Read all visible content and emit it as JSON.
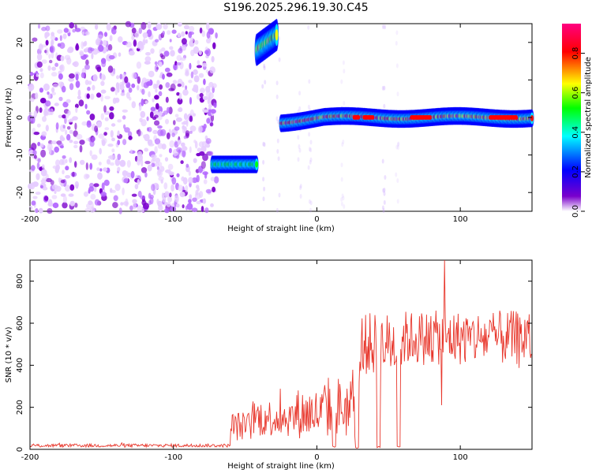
{
  "figure": {
    "title": "S196.2025.296.19.30.C45"
  },
  "chart_data": [
    {
      "type": "heatmap",
      "xlabel": "Height of straight line (km)",
      "ylabel": "Frequency (Hz)",
      "xlim": [
        -200,
        150
      ],
      "ylim": [
        -25,
        25
      ],
      "xticks": [
        -200,
        -100,
        0,
        100
      ],
      "yticks": [
        -20,
        -10,
        0,
        10,
        20
      ],
      "colorbar": {
        "label": "Normalized spectral amplitude",
        "range": [
          0,
          0.95
        ],
        "ticks": [
          0.0,
          0.2,
          0.4,
          0.6,
          0.8
        ],
        "colors": [
          "#ffffff",
          "#7a00cc",
          "#0000ff",
          "#00ffff",
          "#00ff00",
          "#ffff00",
          "#ff0000",
          "#ff00aa"
        ]
      },
      "regions": [
        {
          "name": "noise-field",
          "x": [
            -200,
            -70
          ],
          "y": [
            -25,
            25
          ],
          "amplitude": 0.2
        },
        {
          "name": "low-band",
          "x": [
            -73,
            -42
          ],
          "y": [
            -14,
            -11
          ],
          "amplitude": 0.5
        },
        {
          "name": "high-burst",
          "x": [
            -42,
            -28
          ],
          "y": [
            17,
            23
          ],
          "amplitude": 0.7
        },
        {
          "name": "main-line",
          "x": [
            -25,
            150
          ],
          "y": [
            -1.5,
            1.5
          ],
          "amplitude": 0.85
        }
      ]
    },
    {
      "type": "line",
      "xlabel": "Height of straight line (km)",
      "ylabel": "SNR (10 * v/v)",
      "xlim": [
        -200,
        150
      ],
      "ylim": [
        0,
        900
      ],
      "xticks": [
        -200,
        -100,
        0,
        100
      ],
      "yticks": [
        0,
        200,
        400,
        600,
        800
      ],
      "color": "#e8372c",
      "segments": [
        {
          "x": [
            -200,
            -60
          ],
          "mean": 18,
          "spread": 8
        },
        {
          "x": [
            -60,
            -45
          ],
          "mean": 110,
          "spread": 70
        },
        {
          "x": [
            -45,
            -15
          ],
          "mean": 150,
          "spread": 90
        },
        {
          "x": [
            -15,
            5
          ],
          "mean": 170,
          "spread": 120
        },
        {
          "x": [
            5,
            30
          ],
          "mean": 200,
          "spread": 150
        },
        {
          "x": [
            30,
            60
          ],
          "mean": 500,
          "spread": 150
        },
        {
          "x": [
            60,
            150
          ],
          "mean": 530,
          "spread": 130
        }
      ],
      "dips": [
        {
          "x": 12,
          "y": 10
        },
        {
          "x": 28,
          "y": 5
        },
        {
          "x": 43,
          "y": 8
        },
        {
          "x": 57,
          "y": 10
        }
      ],
      "peaks": [
        {
          "x": 89,
          "y": 900
        },
        {
          "x": 87,
          "y": 210
        }
      ]
    }
  ]
}
